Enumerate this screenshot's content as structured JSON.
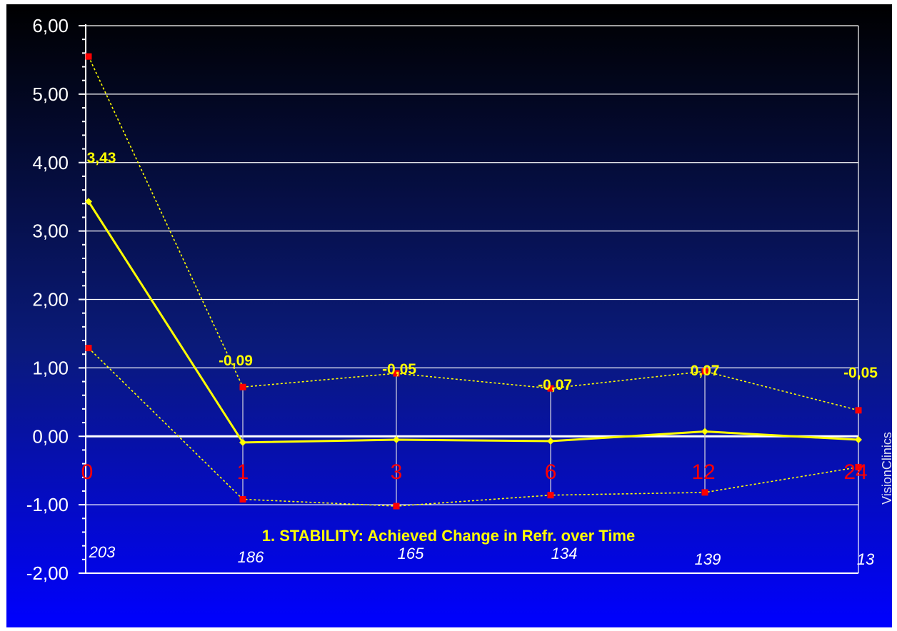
{
  "chart_data": {
    "type": "line",
    "title": "1. STABILITY: Achieved Change in Refr. over Time",
    "watermark": "VisionClinics",
    "categories": [
      "0",
      "1",
      "3",
      "6",
      "12",
      "24"
    ],
    "counts": [
      "203",
      "186",
      "165",
      "134",
      "139",
      "13"
    ],
    "ylim": [
      -2,
      6
    ],
    "yticks": [
      "6,00",
      "5,00",
      "4,00",
      "3,00",
      "2,00",
      "1,00",
      "0,00",
      "-1,00",
      "-2,00"
    ],
    "ytick_values": [
      6,
      5,
      4,
      3,
      2,
      1,
      0,
      -1,
      -2
    ],
    "series": [
      {
        "values": [
          3.43,
          -0.09,
          -0.05,
          -0.07,
          0.07,
          -0.05
        ],
        "labels": [
          "3,43",
          "-0,09",
          "-0,05",
          "-0,07",
          "0,07",
          "-0,05"
        ]
      },
      {
        "values": [
          5.55,
          0.72,
          0.92,
          0.7,
          0.95,
          0.38
        ]
      },
      {
        "values": [
          1.29,
          -0.92,
          -1.02,
          -0.86,
          -0.82,
          -0.45
        ]
      }
    ],
    "grid": true,
    "colors": {
      "mean": "#ffff00",
      "bounds": "#ffff00",
      "bound_markers": "#ff0000",
      "categories": "#ff0000",
      "background_top": "#000000",
      "background_bottom": "#0000ff"
    }
  }
}
